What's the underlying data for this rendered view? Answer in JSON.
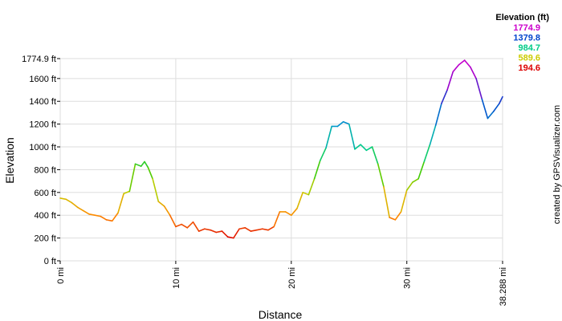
{
  "chart_data": {
    "type": "line",
    "title": "",
    "xlabel": "Distance",
    "ylabel": "Elevation",
    "xlim": [
      0,
      38.288
    ],
    "ylim": [
      0,
      1774.9
    ],
    "x_ticks": [
      {
        "value": 0,
        "label": "0 mi"
      },
      {
        "value": 10,
        "label": "10 mi"
      },
      {
        "value": 20,
        "label": "20 mi"
      },
      {
        "value": 30,
        "label": "30 mi"
      },
      {
        "value": 38.288,
        "label": "38.288 mi"
      }
    ],
    "y_ticks": [
      {
        "value": 0,
        "label": "0 ft"
      },
      {
        "value": 200,
        "label": "200 ft"
      },
      {
        "value": 400,
        "label": "400 ft"
      },
      {
        "value": 600,
        "label": "600 ft"
      },
      {
        "value": 800,
        "label": "800 ft"
      },
      {
        "value": 1000,
        "label": "1000 ft"
      },
      {
        "value": 1200,
        "label": "1200 ft"
      },
      {
        "value": 1400,
        "label": "1400 ft"
      },
      {
        "value": 1600,
        "label": "1600 ft"
      },
      {
        "value": 1774.9,
        "label": "1774.9 ft"
      }
    ],
    "grid": true,
    "legend": {
      "title": "Elevation (ft)",
      "placement": "top-right",
      "entries": [
        {
          "label": "1774.9",
          "color": "#cc00cc"
        },
        {
          "label": "1379.8",
          "color": "#0044cc"
        },
        {
          "label": "984.7",
          "color": "#00cc88"
        },
        {
          "label": "589.6",
          "color": "#cccc00"
        },
        {
          "label": "194.6",
          "color": "#dd0000"
        }
      ]
    },
    "color_scale": [
      "#dd0000",
      "#ff8800",
      "#cccc00",
      "#44cc00",
      "#00cc88",
      "#0099cc",
      "#0044cc",
      "#9900cc",
      "#cc00cc"
    ],
    "elevation_range": [
      194.6,
      1774.9
    ],
    "credit": "created by GPSVisualizer.com",
    "series": [
      {
        "x": [
          0,
          0.5,
          1,
          1.5,
          2,
          2.5,
          3,
          3.5,
          4,
          4.5,
          5,
          5.5,
          6,
          6.5,
          7,
          7.3,
          7.6,
          8,
          8.5,
          9,
          9.5,
          10,
          10.5,
          11,
          11.5,
          12,
          12.5,
          13,
          13.5,
          14,
          14.5,
          15,
          15.5,
          16,
          16.5,
          17,
          17.5,
          18,
          18.5,
          19,
          19.5,
          20,
          20.5,
          21,
          21.5,
          22,
          22.5,
          23,
          23.5,
          24,
          24.5,
          25,
          25.5,
          26,
          26.5,
          27,
          27.5,
          28,
          28.5,
          29,
          29.5,
          30,
          30.5,
          31,
          31.5,
          32,
          32.5,
          33,
          33.5,
          34,
          34.5,
          35,
          35.5,
          36,
          36.5,
          37,
          37.5,
          38,
          38.288
        ],
        "y": [
          550,
          540,
          510,
          470,
          440,
          410,
          400,
          390,
          360,
          350,
          420,
          590,
          610,
          850,
          830,
          870,
          820,
          720,
          520,
          480,
          400,
          300,
          320,
          290,
          340,
          260,
          280,
          270,
          250,
          260,
          210,
          200,
          280,
          290,
          260,
          270,
          280,
          270,
          300,
          430,
          430,
          400,
          460,
          600,
          580,
          720,
          880,
          990,
          1180,
          1180,
          1220,
          1200,
          980,
          1020,
          970,
          1000,
          850,
          650,
          380,
          360,
          430,
          620,
          690,
          720,
          870,
          1020,
          1190,
          1380,
          1500,
          1660,
          1720,
          1760,
          1700,
          1600,
          1420,
          1250,
          1310,
          1380,
          1440
        ]
      }
    ]
  }
}
